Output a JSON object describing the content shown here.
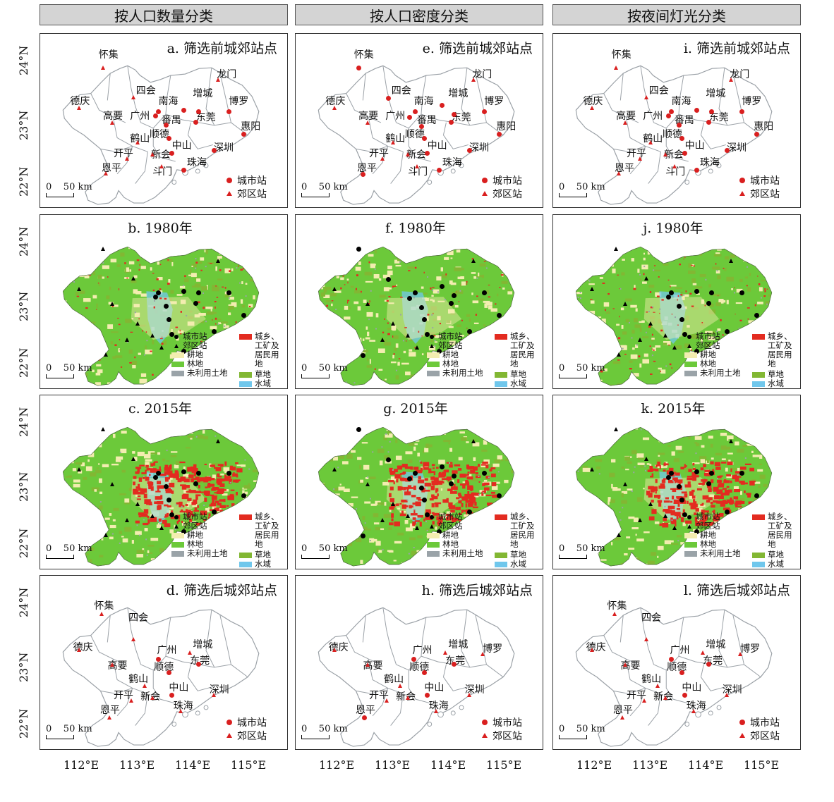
{
  "columns": [
    "按人口数量分类",
    "按人口密度分类",
    "按夜间灯光分类"
  ],
  "panels": {
    "a": "a. 筛选前城郊站点",
    "e": "e. 筛选前城郊站点",
    "i": "i. 筛选前城郊站点",
    "b": "b. 1980年",
    "f": "f. 1980年",
    "j": "j. 1980年",
    "c": "c. 2015年",
    "g": "g. 2015年",
    "k": "k. 2015年",
    "d": "d. 筛选后城郊站点",
    "h": "h. 筛选后城郊站点",
    "l": "l. 筛选后城郊站点"
  },
  "y_labels": [
    "24°N",
    "23°N",
    "22°N"
  ],
  "x_labels": [
    "112°E",
    "113°E",
    "114°E",
    "115°E"
  ],
  "scale_bar": "0    50 km",
  "legend_stations": {
    "urban": "城市站",
    "suburban": "郊区站"
  },
  "legend_landuse": {
    "urban_station": "城市站",
    "suburban_station": "郊区站",
    "built": "城乡、工矿及居民用地",
    "cropland": "耕地",
    "forest": "林地",
    "grassland": "草地",
    "unused": "未利用土地",
    "water": "水域"
  },
  "colors": {
    "built": "#e32b20",
    "cropland": "#f3edb0",
    "forest": "#6cc93a",
    "grassland": "#82b733",
    "unused": "#9aa3a8",
    "water": "#70c7ec",
    "urban_station": "#d91f1f",
    "suburban_station": "#d91f1f",
    "boundary": "#9aa0a6",
    "header_bg": "#d4d4d4"
  }
}
